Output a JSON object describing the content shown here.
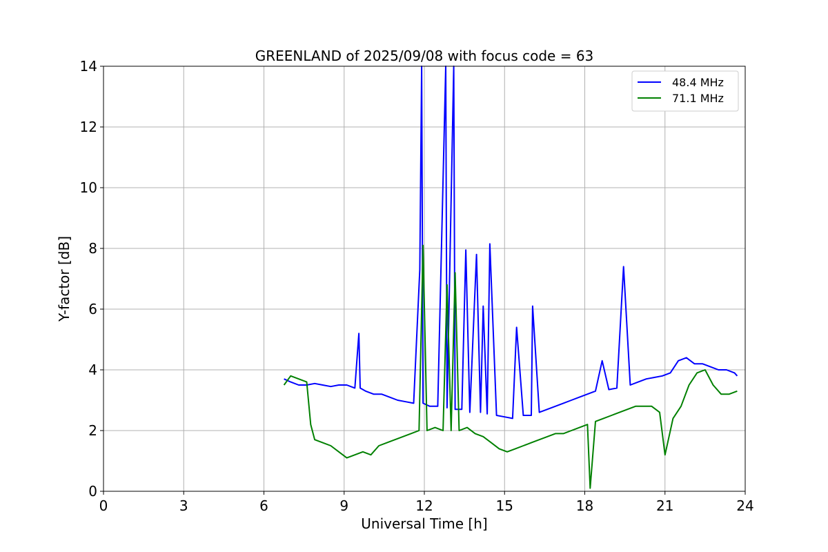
{
  "chart_data": {
    "type": "line",
    "title": "GREENLAND of 2025/09/08 with focus code = 63",
    "xlabel": "Universal Time [h]",
    "ylabel": "Y-factor [dB]",
    "xlim": [
      0,
      24
    ],
    "ylim": [
      0,
      14
    ],
    "xticks": [
      0,
      3,
      6,
      9,
      12,
      15,
      18,
      21,
      24
    ],
    "yticks": [
      0,
      2,
      4,
      6,
      8,
      10,
      12,
      14
    ],
    "grid": true,
    "legend_position": "top-right",
    "series": [
      {
        "name": "  48.4 MHz",
        "color": "#0000ff",
        "x": [
          6.75,
          7.0,
          7.3,
          7.6,
          7.9,
          8.2,
          8.5,
          8.8,
          9.1,
          9.4,
          9.55,
          9.6,
          9.8,
          10.1,
          10.4,
          10.7,
          11.0,
          11.3,
          11.6,
          11.83,
          11.9,
          11.95,
          12.2,
          12.5,
          12.8,
          12.85,
          13.1,
          13.15,
          13.4,
          13.55,
          13.7,
          13.95,
          14.1,
          14.2,
          14.35,
          14.45,
          14.7,
          15.0,
          15.3,
          15.45,
          15.7,
          16.0,
          16.05,
          16.3,
          16.6,
          16.9,
          17.2,
          17.5,
          17.8,
          18.1,
          18.4,
          18.65,
          18.9,
          19.2,
          19.45,
          19.7,
          20.0,
          20.3,
          20.6,
          20.9,
          21.2,
          21.5,
          21.8,
          22.1,
          22.4,
          22.7,
          23.0,
          23.3,
          23.6,
          23.7
        ],
        "y": [
          3.7,
          3.6,
          3.5,
          3.5,
          3.55,
          3.5,
          3.45,
          3.5,
          3.5,
          3.4,
          5.2,
          3.4,
          3.3,
          3.2,
          3.2,
          3.1,
          3.0,
          2.95,
          2.9,
          7.3,
          14.0,
          2.9,
          2.8,
          2.8,
          14.0,
          2.75,
          14.0,
          2.7,
          2.7,
          7.95,
          2.6,
          7.8,
          2.6,
          6.1,
          2.55,
          8.15,
          2.5,
          2.45,
          2.4,
          5.4,
          2.5,
          2.5,
          6.1,
          2.6,
          2.7,
          2.8,
          2.9,
          3.0,
          3.1,
          3.2,
          3.3,
          4.3,
          3.35,
          3.4,
          7.4,
          3.5,
          3.6,
          3.7,
          3.75,
          3.8,
          3.9,
          4.3,
          4.4,
          4.2,
          4.2,
          4.1,
          4.0,
          4.0,
          3.9,
          3.8
        ]
      },
      {
        "name": "  71.1 MHz",
        "color": "#008000",
        "x": [
          6.75,
          7.0,
          7.3,
          7.6,
          7.75,
          7.9,
          8.2,
          8.5,
          8.8,
          9.1,
          9.4,
          9.7,
          10.0,
          10.3,
          10.6,
          10.9,
          11.2,
          11.5,
          11.8,
          11.95,
          12.1,
          12.4,
          12.7,
          12.85,
          13.0,
          13.15,
          13.3,
          13.6,
          13.9,
          14.2,
          14.5,
          14.8,
          15.1,
          15.4,
          15.7,
          16.0,
          16.3,
          16.6,
          16.9,
          17.2,
          17.5,
          17.8,
          18.1,
          18.2,
          18.4,
          18.7,
          19.0,
          19.3,
          19.6,
          19.9,
          20.2,
          20.5,
          20.8,
          21.0,
          21.3,
          21.6,
          21.9,
          22.2,
          22.5,
          22.8,
          23.1,
          23.4,
          23.7
        ],
        "y": [
          3.5,
          3.8,
          3.7,
          3.6,
          2.2,
          1.7,
          1.6,
          1.5,
          1.3,
          1.1,
          1.2,
          1.3,
          1.2,
          1.5,
          1.6,
          1.7,
          1.8,
          1.9,
          2.0,
          8.1,
          2.0,
          2.1,
          2.0,
          6.8,
          2.0,
          7.2,
          2.0,
          2.1,
          1.9,
          1.8,
          1.6,
          1.4,
          1.3,
          1.4,
          1.5,
          1.6,
          1.7,
          1.8,
          1.9,
          1.9,
          2.0,
          2.1,
          2.2,
          0.1,
          2.3,
          2.4,
          2.5,
          2.6,
          2.7,
          2.8,
          2.8,
          2.8,
          2.6,
          1.2,
          2.4,
          2.8,
          3.5,
          3.9,
          4.0,
          3.5,
          3.2,
          3.2,
          3.3
        ]
      }
    ]
  }
}
